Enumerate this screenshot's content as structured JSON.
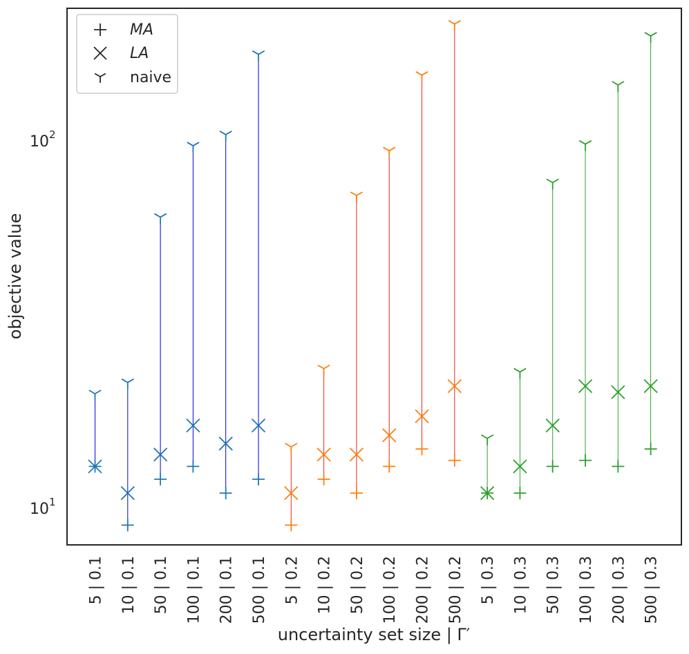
{
  "chart_data": {
    "type": "scatter",
    "title": "",
    "xlabel": "uncertainty set size | Γ′",
    "ylabel": "objective value",
    "yscale": "log",
    "ylim": [
      8.0,
      240
    ],
    "y_ticks": [
      {
        "value": 10,
        "base": "10",
        "exp": "1"
      },
      {
        "value": 100,
        "base": "10",
        "exp": "2"
      }
    ],
    "grid": false,
    "legend_position": "top-left",
    "legend": [
      {
        "key": "MA",
        "label": "MA",
        "marker": "plus"
      },
      {
        "key": "LA",
        "label": "LA",
        "marker": "x"
      },
      {
        "key": "naive",
        "label": "naive",
        "marker": "tri"
      }
    ],
    "categories": [
      "5 | 0.1",
      "10 | 0.1",
      "50 | 0.1",
      "100 | 0.1",
      "200 | 0.1",
      "500 | 0.1",
      "5 | 0.2",
      "10 | 0.2",
      "50 | 0.2",
      "100 | 0.2",
      "200 | 0.2",
      "500 | 0.2",
      "5 | 0.3",
      "10 | 0.3",
      "50 | 0.3",
      "100 | 0.3",
      "200 | 0.3",
      "500 | 0.3"
    ],
    "groups": [
      {
        "gamma": "0.1",
        "marker_color": "#1f77b4",
        "line_color": "#0000dd"
      },
      {
        "gamma": "0.2",
        "marker_color": "#ff7f0e",
        "line_color": "#e8261a"
      },
      {
        "gamma": "0.3",
        "marker_color": "#2ca02c",
        "line_color": "#2ca02c"
      }
    ],
    "series": [
      {
        "name": "MA",
        "values": [
          13.0,
          9.0,
          12.0,
          13.0,
          11.0,
          12.0,
          9.0,
          12.0,
          11.0,
          13.0,
          14.5,
          13.5,
          11.0,
          11.0,
          13.0,
          13.5,
          13.0,
          14.5
        ]
      },
      {
        "name": "LA",
        "values": [
          13.0,
          11.0,
          14.0,
          16.8,
          15.0,
          16.8,
          11.0,
          14.0,
          14.0,
          15.8,
          17.8,
          21.5,
          11.0,
          13.0,
          16.8,
          21.5,
          20.7,
          21.5
        ]
      },
      {
        "name": "naive",
        "values": [
          20.5,
          22.0,
          62.0,
          97.0,
          104.0,
          172.0,
          14.7,
          24.0,
          71.0,
          94.0,
          151.0,
          208.0,
          15.5,
          23.5,
          77.0,
          98.0,
          142.0,
          193.0
        ]
      }
    ]
  }
}
